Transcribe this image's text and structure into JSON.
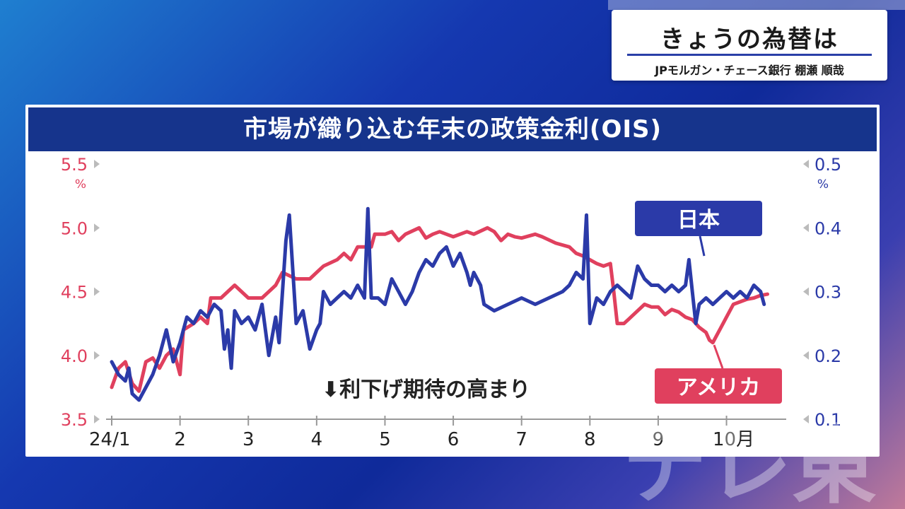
{
  "header": {
    "title": "きょうの為替は",
    "subtitle": "JPモルガン・チェース銀行 棚瀬 順哉"
  },
  "chart_data": {
    "type": "line",
    "title": "市場が織り込む年末の政策金利(OIS)",
    "annotation": "⬇利下げ期待の高まり",
    "left_axis": {
      "unit": "%",
      "ticks": [
        "5.5",
        "5.0",
        "4.5",
        "4.0",
        "3.5"
      ],
      "ylim": [
        3.5,
        5.5
      ],
      "color": "#e0405e"
    },
    "right_axis": {
      "unit": "%",
      "ticks": [
        "0.5",
        "0.4",
        "0.3",
        "0.2",
        "0.1"
      ],
      "ylim": [
        0.1,
        0.5
      ],
      "color": "#2b3aa8"
    },
    "x_ticks": [
      "24/1",
      "2",
      "3",
      "4",
      "5",
      "6",
      "7",
      "8",
      "9",
      "10月"
    ],
    "x_range": [
      0,
      9.75
    ],
    "series": [
      {
        "name": "アメリカ",
        "axis": "left",
        "color": "#e0405e",
        "points": [
          [
            0,
            3.75
          ],
          [
            0.1,
            3.9
          ],
          [
            0.2,
            3.95
          ],
          [
            0.3,
            3.78
          ],
          [
            0.4,
            3.72
          ],
          [
            0.5,
            3.95
          ],
          [
            0.6,
            3.98
          ],
          [
            0.7,
            3.9
          ],
          [
            0.8,
            4.0
          ],
          [
            0.9,
            4.05
          ],
          [
            1.0,
            3.85
          ],
          [
            1.05,
            4.2
          ],
          [
            1.2,
            4.25
          ],
          [
            1.3,
            4.3
          ],
          [
            1.4,
            4.25
          ],
          [
            1.45,
            4.45
          ],
          [
            1.6,
            4.45
          ],
          [
            1.7,
            4.5
          ],
          [
            1.8,
            4.55
          ],
          [
            2.0,
            4.45
          ],
          [
            2.2,
            4.45
          ],
          [
            2.4,
            4.55
          ],
          [
            2.5,
            4.65
          ],
          [
            2.7,
            4.6
          ],
          [
            2.9,
            4.6
          ],
          [
            3.0,
            4.65
          ],
          [
            3.1,
            4.7
          ],
          [
            3.3,
            4.75
          ],
          [
            3.4,
            4.8
          ],
          [
            3.5,
            4.75
          ],
          [
            3.6,
            4.85
          ],
          [
            3.8,
            4.85
          ],
          [
            3.85,
            4.95
          ],
          [
            4.0,
            4.95
          ],
          [
            4.1,
            4.97
          ],
          [
            4.2,
            4.9
          ],
          [
            4.3,
            4.95
          ],
          [
            4.5,
            5.0
          ],
          [
            4.6,
            4.92
          ],
          [
            4.7,
            4.95
          ],
          [
            4.8,
            4.97
          ],
          [
            5.0,
            4.93
          ],
          [
            5.2,
            4.97
          ],
          [
            5.3,
            4.95
          ],
          [
            5.5,
            5.0
          ],
          [
            5.6,
            4.97
          ],
          [
            5.7,
            4.9
          ],
          [
            5.8,
            4.95
          ],
          [
            5.9,
            4.93
          ],
          [
            6.0,
            4.92
          ],
          [
            6.2,
            4.95
          ],
          [
            6.3,
            4.93
          ],
          [
            6.5,
            4.88
          ],
          [
            6.7,
            4.85
          ],
          [
            6.8,
            4.8
          ],
          [
            6.9,
            4.78
          ],
          [
            7.0,
            4.75
          ],
          [
            7.1,
            4.72
          ],
          [
            7.2,
            4.7
          ],
          [
            7.3,
            4.72
          ],
          [
            7.35,
            4.5
          ],
          [
            7.4,
            4.25
          ],
          [
            7.5,
            4.25
          ],
          [
            7.6,
            4.3
          ],
          [
            7.7,
            4.35
          ],
          [
            7.8,
            4.4
          ],
          [
            7.9,
            4.38
          ],
          [
            8.0,
            4.38
          ],
          [
            8.1,
            4.32
          ],
          [
            8.2,
            4.36
          ],
          [
            8.3,
            4.34
          ],
          [
            8.4,
            4.3
          ],
          [
            8.5,
            4.28
          ],
          [
            8.6,
            4.22
          ],
          [
            8.7,
            4.18
          ],
          [
            8.75,
            4.12
          ],
          [
            8.8,
            4.1
          ],
          [
            8.85,
            4.15
          ],
          [
            8.9,
            4.2
          ],
          [
            9.0,
            4.3
          ],
          [
            9.1,
            4.4
          ],
          [
            9.2,
            4.42
          ],
          [
            9.3,
            4.44
          ],
          [
            9.4,
            4.45
          ],
          [
            9.5,
            4.47
          ],
          [
            9.6,
            4.48
          ]
        ]
      },
      {
        "name": "日本",
        "axis": "right",
        "color": "#2b3aa8",
        "points": [
          [
            0,
            0.19
          ],
          [
            0.1,
            0.17
          ],
          [
            0.2,
            0.16
          ],
          [
            0.25,
            0.18
          ],
          [
            0.3,
            0.14
          ],
          [
            0.4,
            0.13
          ],
          [
            0.5,
            0.15
          ],
          [
            0.6,
            0.17
          ],
          [
            0.7,
            0.2
          ],
          [
            0.8,
            0.24
          ],
          [
            0.9,
            0.19
          ],
          [
            1.0,
            0.22
          ],
          [
            1.05,
            0.24
          ],
          [
            1.1,
            0.26
          ],
          [
            1.2,
            0.25
          ],
          [
            1.3,
            0.27
          ],
          [
            1.4,
            0.26
          ],
          [
            1.5,
            0.28
          ],
          [
            1.6,
            0.27
          ],
          [
            1.65,
            0.21
          ],
          [
            1.7,
            0.24
          ],
          [
            1.75,
            0.18
          ],
          [
            1.8,
            0.27
          ],
          [
            1.9,
            0.25
          ],
          [
            2.0,
            0.26
          ],
          [
            2.1,
            0.24
          ],
          [
            2.2,
            0.28
          ],
          [
            2.3,
            0.2
          ],
          [
            2.4,
            0.26
          ],
          [
            2.45,
            0.22
          ],
          [
            2.55,
            0.38
          ],
          [
            2.6,
            0.42
          ],
          [
            2.7,
            0.25
          ],
          [
            2.8,
            0.27
          ],
          [
            2.9,
            0.21
          ],
          [
            3.0,
            0.24
          ],
          [
            3.05,
            0.25
          ],
          [
            3.1,
            0.3
          ],
          [
            3.2,
            0.28
          ],
          [
            3.3,
            0.29
          ],
          [
            3.4,
            0.3
          ],
          [
            3.5,
            0.29
          ],
          [
            3.6,
            0.31
          ],
          [
            3.7,
            0.29
          ],
          [
            3.75,
            0.43
          ],
          [
            3.8,
            0.29
          ],
          [
            3.9,
            0.29
          ],
          [
            4.0,
            0.28
          ],
          [
            4.1,
            0.32
          ],
          [
            4.2,
            0.3
          ],
          [
            4.3,
            0.28
          ],
          [
            4.4,
            0.3
          ],
          [
            4.5,
            0.33
          ],
          [
            4.6,
            0.35
          ],
          [
            4.7,
            0.34
          ],
          [
            4.8,
            0.36
          ],
          [
            4.9,
            0.37
          ],
          [
            5.0,
            0.34
          ],
          [
            5.1,
            0.36
          ],
          [
            5.2,
            0.33
          ],
          [
            5.25,
            0.31
          ],
          [
            5.3,
            0.33
          ],
          [
            5.4,
            0.31
          ],
          [
            5.45,
            0.28
          ],
          [
            5.6,
            0.27
          ],
          [
            5.8,
            0.28
          ],
          [
            6.0,
            0.29
          ],
          [
            6.2,
            0.28
          ],
          [
            6.4,
            0.29
          ],
          [
            6.6,
            0.3
          ],
          [
            6.7,
            0.31
          ],
          [
            6.8,
            0.33
          ],
          [
            6.9,
            0.32
          ],
          [
            6.95,
            0.42
          ],
          [
            7.0,
            0.25
          ],
          [
            7.1,
            0.29
          ],
          [
            7.2,
            0.28
          ],
          [
            7.3,
            0.3
          ],
          [
            7.4,
            0.31
          ],
          [
            7.5,
            0.3
          ],
          [
            7.6,
            0.29
          ],
          [
            7.7,
            0.34
          ],
          [
            7.8,
            0.32
          ],
          [
            7.9,
            0.31
          ],
          [
            8.0,
            0.31
          ],
          [
            8.1,
            0.3
          ],
          [
            8.2,
            0.31
          ],
          [
            8.3,
            0.3
          ],
          [
            8.4,
            0.31
          ],
          [
            8.45,
            0.35
          ],
          [
            8.5,
            0.3
          ],
          [
            8.55,
            0.25
          ],
          [
            8.6,
            0.28
          ],
          [
            8.7,
            0.29
          ],
          [
            8.8,
            0.28
          ],
          [
            9.0,
            0.3
          ],
          [
            9.1,
            0.29
          ],
          [
            9.2,
            0.3
          ],
          [
            9.3,
            0.29
          ],
          [
            9.4,
            0.31
          ],
          [
            9.5,
            0.3
          ],
          [
            9.55,
            0.28
          ]
        ]
      }
    ],
    "legend": [
      {
        "label": "日本",
        "bg": "#2b3aa8"
      },
      {
        "label": "アメリカ",
        "bg": "#e0405e"
      }
    ]
  },
  "watermark": "テレ東"
}
